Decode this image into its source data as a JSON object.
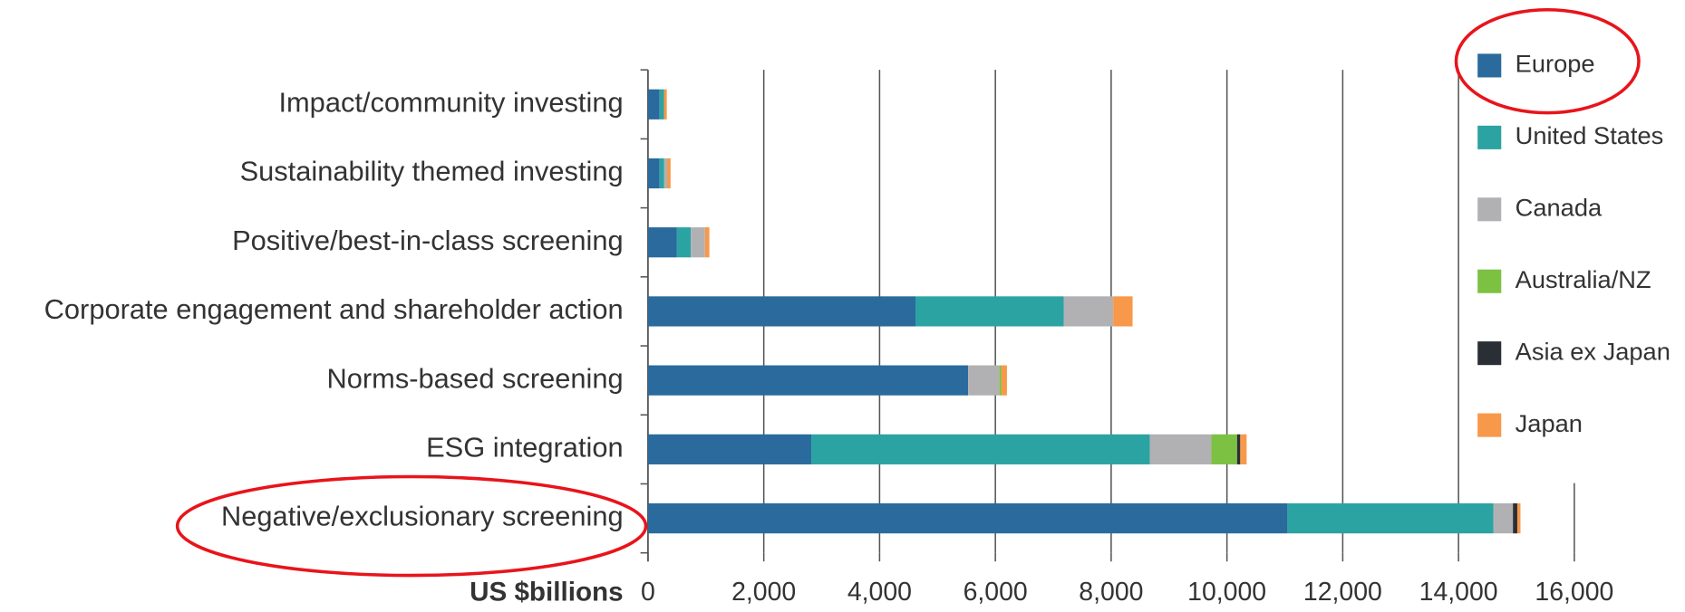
{
  "chart_data": {
    "type": "stacked-barh",
    "x_label": "US $billions",
    "categories": [
      "Impact/community investing",
      "Sustainability themed investing",
      "Positive/best-in-class screening",
      "Corporate engagement and shareholder action",
      "Norms-based screening",
      "ESG integration",
      "Negative/exclusionary screening"
    ],
    "series": [
      {
        "name": "Europe",
        "color": "#2a6a9c",
        "values": [
          200,
          200,
          500,
          4620,
          5530,
          2820,
          11045
        ]
      },
      {
        "name": "United States",
        "color": "#2ca3a3",
        "values": [
          75,
          80,
          240,
          2560,
          0,
          5850,
          3560
        ]
      },
      {
        "name": "Canada",
        "color": "#b1b1b4",
        "values": [
          0,
          50,
          245,
          855,
          540,
          1060,
          335
        ]
      },
      {
        "name": "Australia/NZ",
        "color": "#7dc142",
        "values": [
          0,
          0,
          0,
          0,
          35,
          445,
          0
        ]
      },
      {
        "name": "Asia ex Japan",
        "color": "#2a2f36",
        "values": [
          0,
          0,
          0,
          0,
          0,
          55,
          75
        ]
      },
      {
        "name": "Japan",
        "color": "#f7984a",
        "values": [
          50,
          60,
          75,
          335,
          95,
          110,
          55
        ]
      }
    ],
    "xlim": [
      0,
      16000
    ],
    "xticks": [
      0,
      {
        "value": 2000,
        "label": "2,000"
      },
      {
        "value": 4000,
        "label": "4,000"
      },
      {
        "value": 6000,
        "label": "6,000"
      },
      {
        "value": 8000,
        "label": "8,000"
      },
      {
        "value": 10000,
        "label": "10,000"
      },
      {
        "value": 12000,
        "label": "12,000"
      },
      {
        "value": 14000,
        "label": "14,000"
      },
      {
        "value": 16000,
        "label": "16,000"
      }
    ],
    "grid": true,
    "legend": "top-right"
  }
}
